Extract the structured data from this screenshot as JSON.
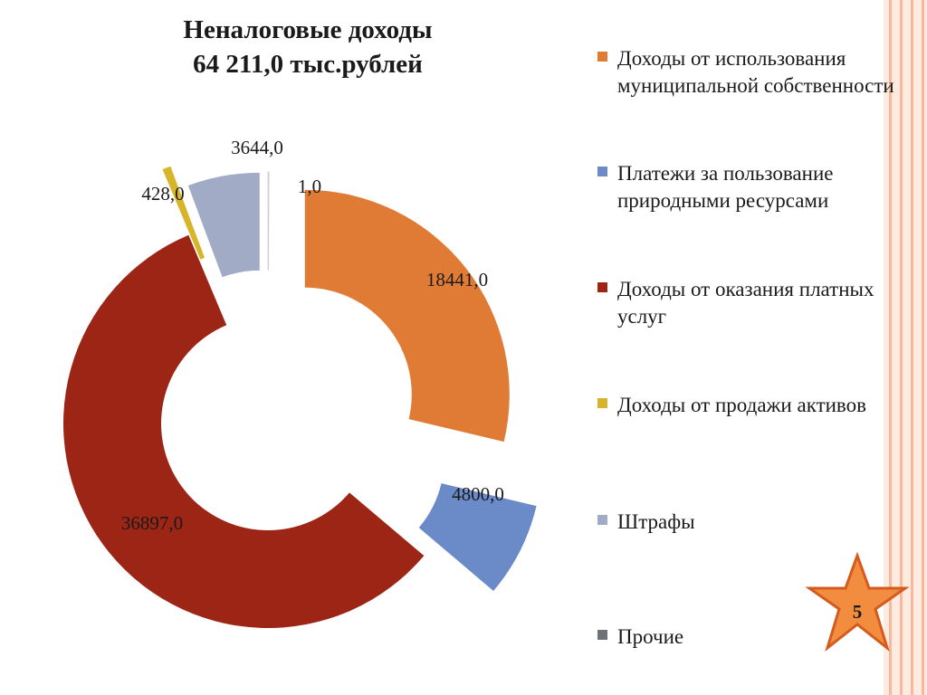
{
  "slide": {
    "title_line1": "Неналоговые доходы",
    "title_line2": "64 211,0 тыс.рублей",
    "page_number": "5"
  },
  "colors": {
    "accent_orange": "#e07b35",
    "star_fill": "#f28c3e"
  },
  "chart_data": {
    "type": "pie",
    "donut": true,
    "exploded": true,
    "title": "Неналоговые доходы 64 211,0 тыс.рублей",
    "legend_position": "right",
    "slices": [
      {
        "name": "Доходы от использования муниципальной собственности",
        "value": 18441.0,
        "label": "18441,0",
        "color": "#e07b35"
      },
      {
        "name": "Платежи за пользование природными ресурсами",
        "value": 4800.0,
        "label": "4800,0",
        "color": "#6a8ac8"
      },
      {
        "name": "Доходы от оказания платных услуг",
        "value": 36897.0,
        "label": "36897,0",
        "color": "#9c2515"
      },
      {
        "name": "Доходы от продажи активов",
        "value": 428.0,
        "label": "428,0",
        "color": "#d7b52a"
      },
      {
        "name": "Штрафы",
        "value": 3644.0,
        "label": "3644,0",
        "color": "#a1abc6"
      },
      {
        "name": "Прочие",
        "value": 1.0,
        "label": "1,0",
        "color": "#6f7378"
      }
    ],
    "legend": [
      "Доходы от использования муниципальной собственности",
      "Платежи за пользование природными ресурсами",
      "Доходы от оказания платных услуг",
      "Доходы от продажи активов",
      "Штрафы",
      "Прочие"
    ]
  }
}
